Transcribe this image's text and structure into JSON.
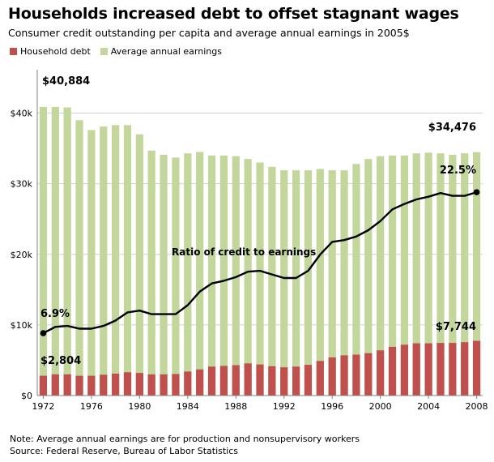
{
  "colors": {
    "debt": "#c0504d",
    "earnings": "#c3d69b",
    "ratio_line": "#000000",
    "grid": "#d0d0d0",
    "axis": "#808080"
  },
  "chart_data": {
    "type": "bar",
    "title": "Households increased debt to offset stagnant wages",
    "subtitle": "Consumer credit outstanding per capita and average annual earnings in 2005$",
    "x": [
      1972,
      1973,
      1974,
      1975,
      1976,
      1977,
      1978,
      1979,
      1980,
      1981,
      1982,
      1983,
      1984,
      1985,
      1986,
      1987,
      1988,
      1989,
      1990,
      1991,
      1992,
      1993,
      1994,
      1995,
      1996,
      1997,
      1998,
      1999,
      2000,
      2001,
      2002,
      2003,
      2004,
      2005,
      2006,
      2007,
      2008
    ],
    "x_tick_labels": [
      "1972",
      "1976",
      "1980",
      "1984",
      "1988",
      "1992",
      "1996",
      "2000",
      "2004",
      "2008"
    ],
    "x_tick_values": [
      1972,
      1976,
      1980,
      1984,
      1988,
      1992,
      1996,
      2000,
      2004,
      2008
    ],
    "y_tick_labels": [
      "$0",
      "$10k",
      "$20k",
      "$30k",
      "$40k"
    ],
    "y_tick_values": [
      0,
      10000,
      20000,
      30000,
      40000
    ],
    "ylim": [
      0,
      45000
    ],
    "grid": true,
    "legend_position": "top-left",
    "series": [
      {
        "name": "Household debt",
        "type": "bar",
        "values": [
          2804,
          3000,
          3000,
          2800,
          2800,
          2950,
          3100,
          3300,
          3200,
          3000,
          3000,
          3050,
          3400,
          3700,
          4100,
          4200,
          4300,
          4550,
          4400,
          4150,
          4000,
          4100,
          4350,
          4900,
          5400,
          5700,
          5800,
          6000,
          6400,
          6900,
          7200,
          7400,
          7400,
          7450,
          7450,
          7550,
          7744
        ]
      },
      {
        "name": "Average annual earnings",
        "type": "bar",
        "values": [
          40884,
          40884,
          40800,
          39000,
          37600,
          38100,
          38300,
          38300,
          37000,
          34700,
          34100,
          33700,
          34300,
          34500,
          34000,
          34000,
          33900,
          33500,
          33000,
          32400,
          31900,
          31900,
          31900,
          32100,
          31900,
          31900,
          32800,
          33500,
          33900,
          34000,
          34000,
          34300,
          34400,
          34300,
          34100,
          34300,
          34476
        ]
      },
      {
        "name": "Ratio of credit to earnings",
        "type": "line",
        "unit": "percent",
        "values": [
          6.9,
          7.6,
          7.7,
          7.4,
          7.4,
          7.7,
          8.3,
          9.2,
          9.4,
          9.0,
          9.0,
          9.0,
          10.0,
          11.5,
          12.4,
          12.7,
          13.1,
          13.7,
          13.8,
          13.4,
          13.0,
          13.0,
          13.8,
          15.6,
          17.0,
          17.2,
          17.6,
          18.3,
          19.3,
          20.6,
          21.2,
          21.7,
          22.0,
          22.4,
          22.1,
          22.1,
          22.5
        ]
      }
    ],
    "annotations": {
      "earnings_start": "$40,884",
      "earnings_end": "$34,476",
      "debt_start": "$2,804",
      "debt_end": "$7,744",
      "ratio_start": "6.9%",
      "ratio_end": "22.5%",
      "ratio_label": "Ratio of credit to earnings"
    }
  },
  "notes": {
    "note": "Note: Average annual earnings are for production and nonsupervisory workers",
    "source": "Source: Federal Reserve, Bureau of Labor Statistics"
  }
}
